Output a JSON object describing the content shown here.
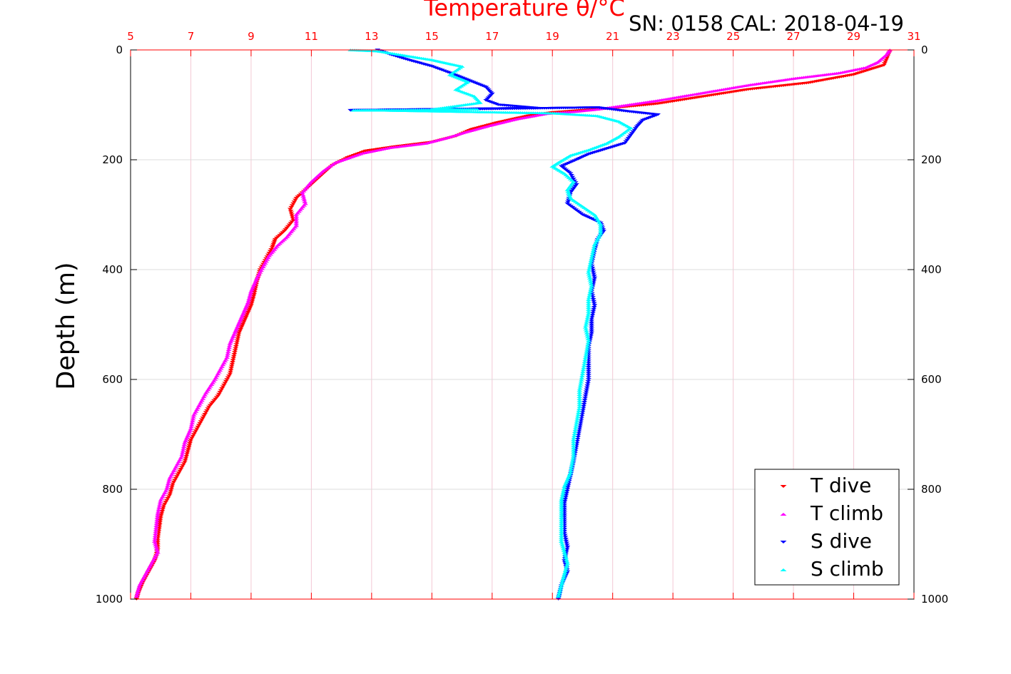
{
  "chart_data": {
    "type": "scatter",
    "title": "Temperature θ/°C",
    "subtitle": "SN: 0158  CAL: 2018-04-19",
    "ylabel": "Depth (m)",
    "xlim": [
      5,
      31
    ],
    "ylim": [
      0,
      1000
    ],
    "y_reversed": true,
    "x_ticks": [
      5,
      7,
      9,
      11,
      13,
      15,
      17,
      19,
      21,
      23,
      25,
      27,
      29,
      31
    ],
    "y_ticks": [
      0,
      200,
      400,
      600,
      800,
      1000
    ],
    "grid": true,
    "legend_position": "bottom-right",
    "series": [
      {
        "name": "T dive",
        "color": "#ff0000",
        "marker": "triangle-down",
        "points": [
          [
            30.2,
            2
          ],
          [
            30.1,
            15
          ],
          [
            30.0,
            28
          ],
          [
            29.0,
            45
          ],
          [
            27.5,
            60
          ],
          [
            25.5,
            72
          ],
          [
            24.0,
            85
          ],
          [
            22.5,
            98
          ],
          [
            21.0,
            106
          ],
          [
            20.0,
            110
          ],
          [
            19.0,
            114
          ],
          [
            18.2,
            120
          ],
          [
            17.2,
            132
          ],
          [
            16.3,
            145
          ],
          [
            15.8,
            157
          ],
          [
            15.0,
            168
          ],
          [
            13.8,
            176
          ],
          [
            12.8,
            184
          ],
          [
            12.2,
            196
          ],
          [
            11.7,
            210
          ],
          [
            11.3,
            230
          ],
          [
            10.9,
            250
          ],
          [
            10.5,
            270
          ],
          [
            10.3,
            290
          ],
          [
            10.4,
            310
          ],
          [
            10.1,
            330
          ],
          [
            9.8,
            345
          ],
          [
            9.7,
            360
          ],
          [
            9.5,
            380
          ],
          [
            9.3,
            400
          ],
          [
            9.2,
            420
          ],
          [
            9.1,
            445
          ],
          [
            9.0,
            465
          ],
          [
            8.8,
            490
          ],
          [
            8.6,
            515
          ],
          [
            8.5,
            540
          ],
          [
            8.4,
            565
          ],
          [
            8.3,
            590
          ],
          [
            8.1,
            610
          ],
          [
            7.9,
            630
          ],
          [
            7.6,
            650
          ],
          [
            7.4,
            670
          ],
          [
            7.2,
            690
          ],
          [
            7.0,
            710
          ],
          [
            6.9,
            730
          ],
          [
            6.8,
            750
          ],
          [
            6.6,
            770
          ],
          [
            6.4,
            790
          ],
          [
            6.3,
            810
          ],
          [
            6.1,
            830
          ],
          [
            6.0,
            850
          ],
          [
            5.95,
            870
          ],
          [
            5.9,
            890
          ],
          [
            5.9,
            910
          ],
          [
            5.8,
            930
          ],
          [
            5.6,
            950
          ],
          [
            5.4,
            970
          ],
          [
            5.25,
            990
          ],
          [
            5.2,
            1000
          ]
        ]
      },
      {
        "name": "T climb",
        "color": "#ff00ff",
        "marker": "triangle-up",
        "points": [
          [
            30.2,
            0
          ],
          [
            30.1,
            8
          ],
          [
            29.8,
            22
          ],
          [
            29.4,
            32
          ],
          [
            28.5,
            42
          ],
          [
            27.0,
            52
          ],
          [
            25.5,
            64
          ],
          [
            24.0,
            78
          ],
          [
            22.5,
            92
          ],
          [
            21.5,
            100
          ],
          [
            20.5,
            108
          ],
          [
            19.8,
            112
          ],
          [
            18.8,
            116
          ],
          [
            17.8,
            126
          ],
          [
            16.9,
            138
          ],
          [
            16.1,
            150
          ],
          [
            15.5,
            160
          ],
          [
            14.8,
            170
          ],
          [
            13.6,
            178
          ],
          [
            12.7,
            188
          ],
          [
            11.8,
            205
          ],
          [
            11.4,
            220
          ],
          [
            11.0,
            240
          ],
          [
            10.7,
            260
          ],
          [
            10.8,
            280
          ],
          [
            10.5,
            300
          ],
          [
            10.5,
            320
          ],
          [
            10.2,
            340
          ],
          [
            9.9,
            355
          ],
          [
            9.6,
            375
          ],
          [
            9.4,
            395
          ],
          [
            9.2,
            415
          ],
          [
            9.0,
            440
          ],
          [
            8.9,
            460
          ],
          [
            8.7,
            485
          ],
          [
            8.5,
            510
          ],
          [
            8.3,
            535
          ],
          [
            8.2,
            560
          ],
          [
            8.0,
            580
          ],
          [
            7.8,
            600
          ],
          [
            7.5,
            625
          ],
          [
            7.3,
            645
          ],
          [
            7.1,
            665
          ],
          [
            7.0,
            690
          ],
          [
            6.8,
            715
          ],
          [
            6.7,
            740
          ],
          [
            6.5,
            760
          ],
          [
            6.3,
            780
          ],
          [
            6.2,
            800
          ],
          [
            6.0,
            820
          ],
          [
            5.9,
            845
          ],
          [
            5.85,
            870
          ],
          [
            5.8,
            895
          ],
          [
            5.9,
            915
          ],
          [
            5.7,
            935
          ],
          [
            5.5,
            955
          ],
          [
            5.3,
            975
          ],
          [
            5.2,
            995
          ]
        ]
      },
      {
        "name": "S dive",
        "color": "#0000ff",
        "marker": "triangle-down",
        "points": [
          [
            13.2,
            0
          ],
          [
            13.6,
            8
          ],
          [
            14.2,
            18
          ],
          [
            15.0,
            30
          ],
          [
            15.6,
            42
          ],
          [
            16.2,
            55
          ],
          [
            16.8,
            68
          ],
          [
            17.0,
            80
          ],
          [
            16.8,
            92
          ],
          [
            17.2,
            100
          ],
          [
            18.5,
            106
          ],
          [
            12.3,
            110
          ],
          [
            13.5,
            110
          ],
          [
            20.5,
            105
          ],
          [
            21.5,
            112
          ],
          [
            22.5,
            118
          ],
          [
            22.0,
            128
          ],
          [
            21.8,
            140
          ],
          [
            21.6,
            155
          ],
          [
            21.4,
            170
          ],
          [
            20.8,
            180
          ],
          [
            20.2,
            190
          ],
          [
            19.8,
            200
          ],
          [
            19.3,
            212
          ],
          [
            19.6,
            225
          ],
          [
            19.8,
            245
          ],
          [
            19.6,
            260
          ],
          [
            19.5,
            280
          ],
          [
            20.0,
            300
          ],
          [
            20.6,
            315
          ],
          [
            20.7,
            330
          ],
          [
            20.5,
            345
          ],
          [
            20.4,
            365
          ],
          [
            20.3,
            390
          ],
          [
            20.4,
            415
          ],
          [
            20.3,
            440
          ],
          [
            20.4,
            465
          ],
          [
            20.3,
            490
          ],
          [
            20.3,
            515
          ],
          [
            20.2,
            540
          ],
          [
            20.2,
            570
          ],
          [
            20.2,
            600
          ],
          [
            20.1,
            630
          ],
          [
            20.0,
            660
          ],
          [
            19.9,
            690
          ],
          [
            19.8,
            720
          ],
          [
            19.7,
            750
          ],
          [
            19.6,
            775
          ],
          [
            19.5,
            800
          ],
          [
            19.4,
            825
          ],
          [
            19.4,
            850
          ],
          [
            19.4,
            880
          ],
          [
            19.5,
            905
          ],
          [
            19.4,
            930
          ],
          [
            19.5,
            950
          ],
          [
            19.3,
            975
          ],
          [
            19.2,
            1000
          ]
        ]
      },
      {
        "name": "S climb",
        "color": "#00ffff",
        "marker": "triangle-up",
        "points": [
          [
            12.3,
            0
          ],
          [
            13.2,
            2
          ],
          [
            15.0,
            18
          ],
          [
            16.0,
            30
          ],
          [
            15.6,
            45
          ],
          [
            16.2,
            58
          ],
          [
            15.8,
            72
          ],
          [
            16.4,
            84
          ],
          [
            16.6,
            96
          ],
          [
            15.0,
            108
          ],
          [
            16.5,
            108
          ],
          [
            12.4,
            110
          ],
          [
            13.4,
            110
          ],
          [
            19.0,
            115
          ],
          [
            20.5,
            120
          ],
          [
            21.2,
            130
          ],
          [
            21.6,
            142
          ],
          [
            21.2,
            158
          ],
          [
            20.8,
            170
          ],
          [
            20.2,
            182
          ],
          [
            19.6,
            192
          ],
          [
            19.2,
            205
          ],
          [
            19.0,
            212
          ],
          [
            19.4,
            225
          ],
          [
            19.7,
            240
          ],
          [
            19.5,
            255
          ],
          [
            19.6,
            270
          ],
          [
            20.0,
            285
          ],
          [
            20.4,
            300
          ],
          [
            20.6,
            318
          ],
          [
            20.6,
            335
          ],
          [
            20.4,
            355
          ],
          [
            20.3,
            380
          ],
          [
            20.2,
            405
          ],
          [
            20.3,
            430
          ],
          [
            20.2,
            455
          ],
          [
            20.2,
            480
          ],
          [
            20.1,
            505
          ],
          [
            20.2,
            530
          ],
          [
            20.1,
            560
          ],
          [
            20.0,
            590
          ],
          [
            19.9,
            620
          ],
          [
            19.9,
            650
          ],
          [
            19.8,
            680
          ],
          [
            19.7,
            710
          ],
          [
            19.7,
            740
          ],
          [
            19.6,
            770
          ],
          [
            19.4,
            795
          ],
          [
            19.3,
            820
          ],
          [
            19.3,
            845
          ],
          [
            19.3,
            870
          ],
          [
            19.3,
            895
          ],
          [
            19.4,
            915
          ],
          [
            19.5,
            935
          ],
          [
            19.4,
            955
          ],
          [
            19.3,
            975
          ],
          [
            19.2,
            995
          ]
        ]
      }
    ]
  }
}
